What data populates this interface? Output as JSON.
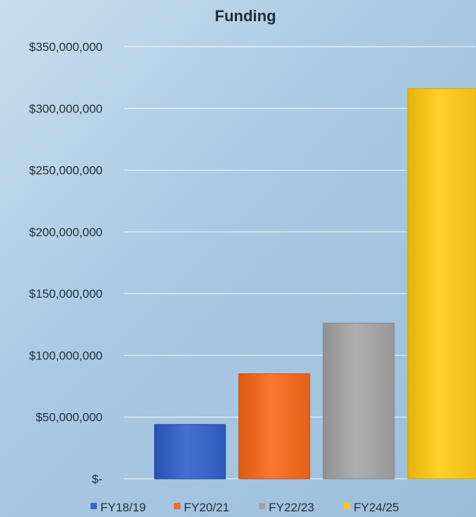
{
  "chart_data": {
    "type": "bar",
    "title": "Funding",
    "xlabel": "",
    "ylabel": "",
    "categories": [
      "FY18/19",
      "FY20/21",
      "FY22/23",
      "FY24/25"
    ],
    "values": [
      44000000,
      85000000,
      126000000,
      316000000
    ],
    "ylim": [
      0,
      350000000
    ],
    "yticks": [
      0,
      50000000,
      100000000,
      150000000,
      200000000,
      250000000,
      300000000,
      350000000
    ],
    "ytick_labels": [
      "$-",
      "$50,000,000",
      "$100,000,000",
      "$150,000,000",
      "$200,000,000",
      "$250,000,000",
      "$300,000,000",
      "$350,000,000"
    ],
    "grid": true,
    "legend_position": "bottom",
    "colors": [
      "#3a64c4",
      "#ef6a22",
      "#a3a3a3",
      "#f7c51e"
    ]
  }
}
